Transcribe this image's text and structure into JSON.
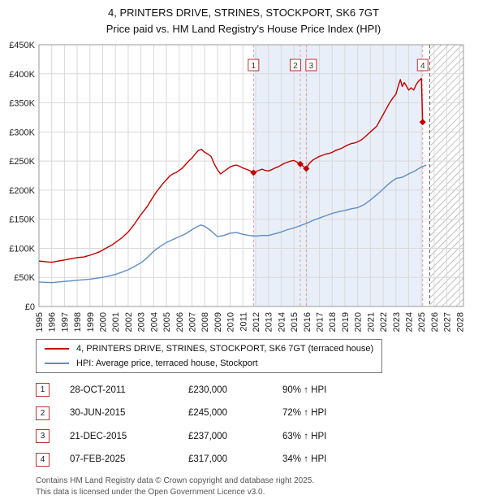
{
  "title": {
    "line1": "4, PRINTERS DRIVE, STRINES, STOCKPORT, SK6 7GT",
    "line2": "Price paid vs. HM Land Registry's House Price Index (HPI)"
  },
  "chart_data": {
    "type": "line",
    "x_min": 1995,
    "x_max": 2028.3,
    "ylim": [
      0,
      450000
    ],
    "y_tick_step": 50000,
    "y_tick_labels": [
      "£0",
      "£50K",
      "£100K",
      "£150K",
      "£200K",
      "£250K",
      "£300K",
      "£350K",
      "£400K",
      "£450K"
    ],
    "x_ticks": [
      1995,
      1996,
      1997,
      1998,
      1999,
      2000,
      2001,
      2002,
      2003,
      2004,
      2005,
      2006,
      2007,
      2008,
      2009,
      2010,
      2011,
      2012,
      2013,
      2014,
      2015,
      2016,
      2017,
      2018,
      2019,
      2020,
      2021,
      2022,
      2023,
      2024,
      2025,
      2026,
      2027,
      2028
    ],
    "grid": true,
    "grid_color": "#d9d9d9",
    "axis_color": "#999999",
    "marker_line_color": "#e49a9a",
    "hatch_color": "#999999",
    "shaded_region": {
      "from": 2011.83,
      "to": 2025.1,
      "color": "#e9eff9"
    },
    "hatched_region": {
      "from": 2025.65,
      "to": 2028.3
    },
    "series": [
      {
        "name": "4, PRINTERS DRIVE, STRINES, STOCKPORT, SK6 7GT (terraced house)",
        "color": "#c00000",
        "points": [
          [
            1995,
            78000
          ],
          [
            1995.25,
            77500
          ],
          [
            1995.5,
            77000
          ],
          [
            1995.75,
            76500
          ],
          [
            1996,
            76000
          ],
          [
            1996.25,
            77000
          ],
          [
            1996.5,
            78000
          ],
          [
            1996.75,
            79000
          ],
          [
            1997,
            80000
          ],
          [
            1997.25,
            81000
          ],
          [
            1997.5,
            82000
          ],
          [
            1997.75,
            83000
          ],
          [
            1998,
            84000
          ],
          [
            1998.25,
            84500
          ],
          [
            1998.5,
            85000
          ],
          [
            1998.75,
            86500
          ],
          [
            1999,
            88000
          ],
          [
            1999.25,
            90000
          ],
          [
            1999.5,
            92000
          ],
          [
            1999.75,
            94000
          ],
          [
            2000,
            97000
          ],
          [
            2000.25,
            100000
          ],
          [
            2000.5,
            103000
          ],
          [
            2000.75,
            106000
          ],
          [
            2001,
            110000
          ],
          [
            2001.25,
            114000
          ],
          [
            2001.5,
            118000
          ],
          [
            2001.75,
            123000
          ],
          [
            2002,
            128000
          ],
          [
            2002.25,
            135000
          ],
          [
            2002.5,
            142000
          ],
          [
            2002.75,
            150000
          ],
          [
            2003,
            158000
          ],
          [
            2003.25,
            165000
          ],
          [
            2003.5,
            172000
          ],
          [
            2003.75,
            181000
          ],
          [
            2004,
            190000
          ],
          [
            2004.25,
            198000
          ],
          [
            2004.5,
            205000
          ],
          [
            2004.75,
            212000
          ],
          [
            2005,
            218000
          ],
          [
            2005.25,
            224000
          ],
          [
            2005.5,
            228000
          ],
          [
            2005.75,
            230000
          ],
          [
            2006,
            234000
          ],
          [
            2006.25,
            238000
          ],
          [
            2006.5,
            244000
          ],
          [
            2006.75,
            250000
          ],
          [
            2007,
            255000
          ],
          [
            2007.25,
            262000
          ],
          [
            2007.5,
            268000
          ],
          [
            2007.75,
            270000
          ],
          [
            2008,
            265000
          ],
          [
            2008.25,
            262000
          ],
          [
            2008.5,
            258000
          ],
          [
            2008.75,
            245000
          ],
          [
            2009,
            235000
          ],
          [
            2009.25,
            228000
          ],
          [
            2009.5,
            232000
          ],
          [
            2009.75,
            236000
          ],
          [
            2010,
            240000
          ],
          [
            2010.25,
            242000
          ],
          [
            2010.5,
            243000
          ],
          [
            2010.75,
            241000
          ],
          [
            2011,
            238000
          ],
          [
            2011.25,
            236000
          ],
          [
            2011.5,
            234000
          ],
          [
            2011.83,
            230000
          ],
          [
            2012,
            232000
          ],
          [
            2012.25,
            234000
          ],
          [
            2012.5,
            236000
          ],
          [
            2012.75,
            234000
          ],
          [
            2013,
            233000
          ],
          [
            2013.25,
            235000
          ],
          [
            2013.5,
            238000
          ],
          [
            2013.75,
            240000
          ],
          [
            2014,
            243000
          ],
          [
            2014.25,
            246000
          ],
          [
            2014.5,
            248000
          ],
          [
            2014.75,
            250000
          ],
          [
            2015,
            251000
          ],
          [
            2015.25,
            248000
          ],
          [
            2015.5,
            245000
          ],
          [
            2015.97,
            237000
          ],
          [
            2016.2,
            246000
          ],
          [
            2016.5,
            252000
          ],
          [
            2016.75,
            255000
          ],
          [
            2017,
            258000
          ],
          [
            2017.25,
            260000
          ],
          [
            2017.5,
            262000
          ],
          [
            2017.75,
            263000
          ],
          [
            2018,
            265000
          ],
          [
            2018.25,
            268000
          ],
          [
            2018.5,
            270000
          ],
          [
            2018.75,
            272000
          ],
          [
            2019,
            275000
          ],
          [
            2019.25,
            278000
          ],
          [
            2019.5,
            280000
          ],
          [
            2019.75,
            281000
          ],
          [
            2020,
            283000
          ],
          [
            2020.25,
            286000
          ],
          [
            2020.5,
            290000
          ],
          [
            2020.75,
            295000
          ],
          [
            2021,
            300000
          ],
          [
            2021.25,
            305000
          ],
          [
            2021.5,
            310000
          ],
          [
            2021.75,
            320000
          ],
          [
            2022,
            330000
          ],
          [
            2022.25,
            340000
          ],
          [
            2022.5,
            350000
          ],
          [
            2022.75,
            358000
          ],
          [
            2023,
            365000
          ],
          [
            2023.2,
            380000
          ],
          [
            2023.35,
            390000
          ],
          [
            2023.5,
            378000
          ],
          [
            2023.65,
            385000
          ],
          [
            2023.8,
            380000
          ],
          [
            2024,
            372000
          ],
          [
            2024.2,
            376000
          ],
          [
            2024.4,
            372000
          ],
          [
            2024.6,
            382000
          ],
          [
            2024.8,
            388000
          ],
          [
            2025,
            392000
          ],
          [
            2025.1,
            317000
          ]
        ]
      },
      {
        "name": "HPI: Average price, terraced house, Stockport",
        "color": "#5f8dc3",
        "points": [
          [
            1995,
            42000
          ],
          [
            1995.5,
            41500
          ],
          [
            1996,
            41000
          ],
          [
            1996.5,
            42000
          ],
          [
            1997,
            43000
          ],
          [
            1997.5,
            44000
          ],
          [
            1998,
            45000
          ],
          [
            1998.5,
            46000
          ],
          [
            1999,
            47000
          ],
          [
            1999.5,
            48500
          ],
          [
            2000,
            50000
          ],
          [
            2000.5,
            52500
          ],
          [
            2001,
            55000
          ],
          [
            2001.5,
            59000
          ],
          [
            2002,
            63000
          ],
          [
            2002.5,
            69000
          ],
          [
            2003,
            75000
          ],
          [
            2003.5,
            84000
          ],
          [
            2004,
            95000
          ],
          [
            2004.5,
            103000
          ],
          [
            2005,
            110000
          ],
          [
            2005.5,
            115000
          ],
          [
            2006,
            120000
          ],
          [
            2006.5,
            125000
          ],
          [
            2007,
            132000
          ],
          [
            2007.4,
            137000
          ],
          [
            2007.7,
            140000
          ],
          [
            2008,
            138000
          ],
          [
            2008.5,
            130000
          ],
          [
            2009,
            120000
          ],
          [
            2009.5,
            122000
          ],
          [
            2010,
            126000
          ],
          [
            2010.5,
            127000
          ],
          [
            2011,
            124000
          ],
          [
            2011.5,
            122000
          ],
          [
            2012,
            121000
          ],
          [
            2012.5,
            122000
          ],
          [
            2013,
            122000
          ],
          [
            2013.5,
            125000
          ],
          [
            2014,
            128000
          ],
          [
            2014.5,
            132000
          ],
          [
            2015,
            135000
          ],
          [
            2015.5,
            139000
          ],
          [
            2016,
            143000
          ],
          [
            2016.5,
            148000
          ],
          [
            2017,
            152000
          ],
          [
            2017.5,
            156000
          ],
          [
            2018,
            160000
          ],
          [
            2018.5,
            163000
          ],
          [
            2019,
            165000
          ],
          [
            2019.5,
            168000
          ],
          [
            2020,
            170000
          ],
          [
            2020.5,
            175000
          ],
          [
            2021,
            183000
          ],
          [
            2021.5,
            192000
          ],
          [
            2022,
            202000
          ],
          [
            2022.5,
            212000
          ],
          [
            2023,
            220000
          ],
          [
            2023.5,
            222000
          ],
          [
            2024,
            228000
          ],
          [
            2024.5,
            233000
          ],
          [
            2025,
            240000
          ],
          [
            2025.4,
            243000
          ]
        ]
      }
    ],
    "sale_markers": [
      {
        "label": "1",
        "x": 2011.83,
        "y": 230000,
        "box_dx": 0
      },
      {
        "label": "2",
        "x": 2015.5,
        "y": 245000,
        "box_dx": -6
      },
      {
        "label": "3",
        "x": 2015.97,
        "y": 237000,
        "box_dx": 6
      },
      {
        "label": "4",
        "x": 2025.1,
        "y": 317000,
        "box_dx": 0
      }
    ]
  },
  "legend": {
    "items": [
      {
        "label": "4, PRINTERS DRIVE, STRINES, STOCKPORT, SK6 7GT (terraced house)",
        "color": "#c00000"
      },
      {
        "label": "HPI: Average price, terraced house, Stockport",
        "color": "#5f8dc3"
      }
    ]
  },
  "table": [
    {
      "num": "1",
      "date": "28-OCT-2011",
      "price": "£230,000",
      "hpi": "90% ↑ HPI"
    },
    {
      "num": "2",
      "date": "30-JUN-2015",
      "price": "£245,000",
      "hpi": "72% ↑ HPI"
    },
    {
      "num": "3",
      "date": "21-DEC-2015",
      "price": "£237,000",
      "hpi": "63% ↑ HPI"
    },
    {
      "num": "4",
      "date": "07-FEB-2025",
      "price": "£317,000",
      "hpi": "34% ↑ HPI"
    }
  ],
  "footer": {
    "line1": "Contains HM Land Registry data © Crown copyright and database right 2025.",
    "line2": "This data is licensed under the Open Government Licence v3.0."
  }
}
